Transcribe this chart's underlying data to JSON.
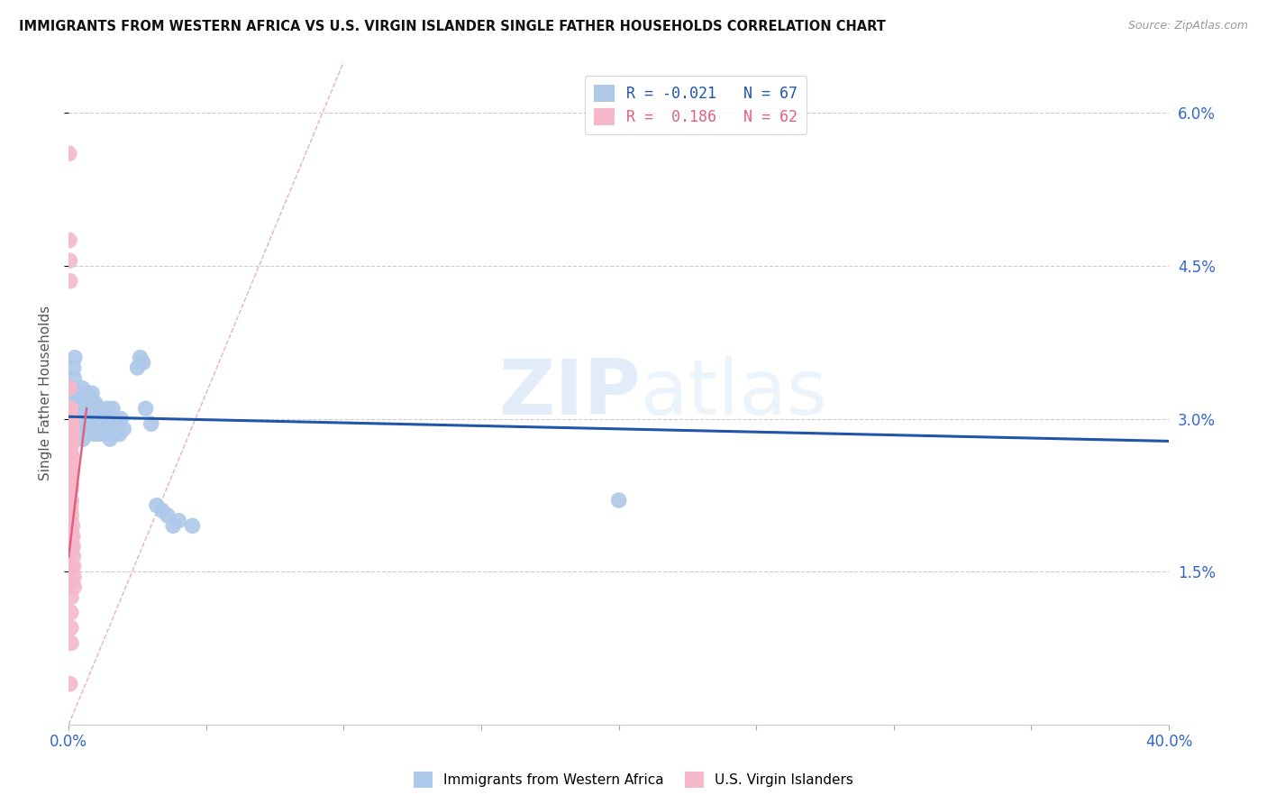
{
  "title": "IMMIGRANTS FROM WESTERN AFRICA VS U.S. VIRGIN ISLANDER SINGLE FATHER HOUSEHOLDS CORRELATION CHART",
  "source": "Source: ZipAtlas.com",
  "ylabel": "Single Father Households",
  "legend_blue_r": "R = -0.021",
  "legend_blue_n": "N = 67",
  "legend_pink_r": "R =  0.186",
  "legend_pink_n": "N = 62",
  "watermark_zip": "ZIP",
  "watermark_atlas": "atlas",
  "blue_color": "#adc8e8",
  "pink_color": "#f5b8c8",
  "blue_line_color": "#2255aa",
  "pink_line_color": "#e06080",
  "diag_color": "#e8b0c0",
  "background_color": "#ffffff",
  "blue_scatter": [
    [
      0.001,
      0.0295
    ],
    [
      0.0012,
      0.031
    ],
    [
      0.0015,
      0.033
    ],
    [
      0.0018,
      0.035
    ],
    [
      0.002,
      0.034
    ],
    [
      0.0022,
      0.036
    ],
    [
      0.0025,
      0.032
    ],
    [
      0.0028,
      0.0295
    ],
    [
      0.003,
      0.031
    ],
    [
      0.0032,
      0.0325
    ],
    [
      0.0035,
      0.0305
    ],
    [
      0.0038,
      0.0315
    ],
    [
      0.004,
      0.03
    ],
    [
      0.0042,
      0.032
    ],
    [
      0.0045,
      0.0295
    ],
    [
      0.0048,
      0.031
    ],
    [
      0.005,
      0.033
    ],
    [
      0.0052,
      0.028
    ],
    [
      0.0055,
      0.03
    ],
    [
      0.0058,
      0.0315
    ],
    [
      0.006,
      0.0295
    ],
    [
      0.0062,
      0.031
    ],
    [
      0.0065,
      0.0325
    ],
    [
      0.0068,
      0.0305
    ],
    [
      0.007,
      0.029
    ],
    [
      0.0072,
      0.0315
    ],
    [
      0.0075,
      0.03
    ],
    [
      0.0078,
      0.032
    ],
    [
      0.008,
      0.0295
    ],
    [
      0.0082,
      0.031
    ],
    [
      0.0085,
      0.0325
    ],
    [
      0.0088,
      0.03
    ],
    [
      0.009,
      0.0285
    ],
    [
      0.0092,
      0.031
    ],
    [
      0.0095,
      0.0295
    ],
    [
      0.0098,
      0.0315
    ],
    [
      0.01,
      0.03
    ],
    [
      0.011,
      0.0285
    ],
    [
      0.0115,
      0.031
    ],
    [
      0.012,
      0.0295
    ],
    [
      0.0125,
      0.0285
    ],
    [
      0.013,
      0.03
    ],
    [
      0.0135,
      0.029
    ],
    [
      0.014,
      0.031
    ],
    [
      0.0145,
      0.0295
    ],
    [
      0.015,
      0.028
    ],
    [
      0.0155,
      0.0295
    ],
    [
      0.016,
      0.031
    ],
    [
      0.0165,
      0.0285
    ],
    [
      0.017,
      0.03
    ],
    [
      0.0175,
      0.029
    ],
    [
      0.018,
      0.0295
    ],
    [
      0.0185,
      0.0285
    ],
    [
      0.019,
      0.03
    ],
    [
      0.02,
      0.029
    ],
    [
      0.025,
      0.035
    ],
    [
      0.026,
      0.036
    ],
    [
      0.027,
      0.0355
    ],
    [
      0.028,
      0.031
    ],
    [
      0.03,
      0.0295
    ],
    [
      0.032,
      0.0215
    ],
    [
      0.034,
      0.021
    ],
    [
      0.036,
      0.0205
    ],
    [
      0.038,
      0.0195
    ],
    [
      0.04,
      0.02
    ],
    [
      0.045,
      0.0195
    ],
    [
      0.2,
      0.022
    ]
  ],
  "pink_scatter": [
    [
      0.0002,
      0.056
    ],
    [
      0.0003,
      0.0475
    ],
    [
      0.0004,
      0.0455
    ],
    [
      0.0005,
      0.0435
    ],
    [
      0.0005,
      0.033
    ],
    [
      0.0005,
      0.0295
    ],
    [
      0.0006,
      0.031
    ],
    [
      0.0006,
      0.0285
    ],
    [
      0.0006,
      0.027
    ],
    [
      0.0007,
      0.03
    ],
    [
      0.0007,
      0.0285
    ],
    [
      0.0007,
      0.0265
    ],
    [
      0.0007,
      0.025
    ],
    [
      0.0008,
      0.031
    ],
    [
      0.0008,
      0.0295
    ],
    [
      0.0008,
      0.0275
    ],
    [
      0.0008,
      0.0255
    ],
    [
      0.0008,
      0.0235
    ],
    [
      0.0008,
      0.022
    ],
    [
      0.0008,
      0.021
    ],
    [
      0.0009,
      0.03
    ],
    [
      0.0009,
      0.0285
    ],
    [
      0.0009,
      0.0265
    ],
    [
      0.0009,
      0.0245
    ],
    [
      0.0009,
      0.023
    ],
    [
      0.0009,
      0.0215
    ],
    [
      0.0009,
      0.02
    ],
    [
      0.0009,
      0.0185
    ],
    [
      0.0009,
      0.017
    ],
    [
      0.0009,
      0.0155
    ],
    [
      0.0009,
      0.014
    ],
    [
      0.0009,
      0.0125
    ],
    [
      0.0009,
      0.011
    ],
    [
      0.0009,
      0.0095
    ],
    [
      0.0009,
      0.008
    ],
    [
      0.001,
      0.0295
    ],
    [
      0.001,
      0.028
    ],
    [
      0.001,
      0.0265
    ],
    [
      0.001,
      0.025
    ],
    [
      0.001,
      0.0235
    ],
    [
      0.001,
      0.022
    ],
    [
      0.001,
      0.0205
    ],
    [
      0.001,
      0.019
    ],
    [
      0.001,
      0.0175
    ],
    [
      0.001,
      0.0155
    ],
    [
      0.001,
      0.014
    ],
    [
      0.0011,
      0.03
    ],
    [
      0.0011,
      0.028
    ],
    [
      0.0011,
      0.026
    ],
    [
      0.0011,
      0.0245
    ],
    [
      0.0012,
      0.0295
    ],
    [
      0.0012,
      0.0275
    ],
    [
      0.0013,
      0.03
    ],
    [
      0.0013,
      0.0285
    ],
    [
      0.0014,
      0.0195
    ],
    [
      0.0015,
      0.0185
    ],
    [
      0.0016,
      0.0175
    ],
    [
      0.0017,
      0.0165
    ],
    [
      0.0018,
      0.0155
    ],
    [
      0.0019,
      0.0145
    ],
    [
      0.002,
      0.0135
    ],
    [
      0.0005,
      0.004
    ]
  ],
  "xlim": [
    0.0,
    0.4
  ],
  "ylim": [
    0.0,
    0.065
  ],
  "right_ytick_vals": [
    0.015,
    0.03,
    0.045,
    0.06
  ],
  "right_ytick_labels": [
    "1.5%",
    "3.0%",
    "4.5%",
    "6.0%"
  ],
  "blue_trend_x": [
    0.0,
    0.4
  ],
  "blue_trend_y": [
    0.0302,
    0.0278
  ],
  "pink_trend_x": [
    0.0,
    0.0065
  ],
  "pink_trend_y": [
    0.0165,
    0.031
  ]
}
